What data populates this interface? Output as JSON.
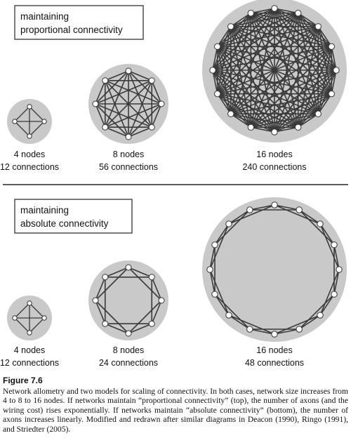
{
  "top_panel": {
    "title_line1": "maintaining",
    "title_line2": "proportional connectivity",
    "networks": [
      {
        "nodes": 4,
        "label_nodes": "4 nodes",
        "label_connections": "12 connections",
        "mode": "full"
      },
      {
        "nodes": 8,
        "label_nodes": "8 nodes",
        "label_connections": "56 connections",
        "mode": "full"
      },
      {
        "nodes": 16,
        "label_nodes": "16 nodes",
        "label_connections": "240 connections",
        "mode": "full"
      }
    ]
  },
  "bottom_panel": {
    "title_line1": "maintaining",
    "title_line2": "absolute connectivity",
    "networks": [
      {
        "nodes": 4,
        "label_nodes": "4 nodes",
        "label_connections": "12 connections",
        "mode": "full"
      },
      {
        "nodes": 8,
        "label_nodes": "8 nodes",
        "label_connections": "24 connections",
        "mode": "ring2"
      },
      {
        "nodes": 16,
        "label_nodes": "16 nodes",
        "label_connections": "48 connections",
        "mode": "ring2"
      }
    ]
  },
  "caption": {
    "figure_label": "Figure 7.6",
    "text": "Network allometry and two models for scaling of connectivity. In both cases, network size increases from 4 to 8 to 16 nodes. If networks maintain “proportional connectivity” (top), the number of axons (and the wiring cost) rises exponentially. If networks maintain “absolute connectivity” (bottom), the number of axons increases linearly. Modified and redrawn after similar diagrams in Deacon (1990), Ringo (1991), and Striedter (2005)."
  },
  "colors": {
    "disc": "#c9c9c9",
    "line": "#3a3a3a",
    "node_fill": "#ffffff",
    "node_stroke": "#333333",
    "divider": "#222222"
  }
}
